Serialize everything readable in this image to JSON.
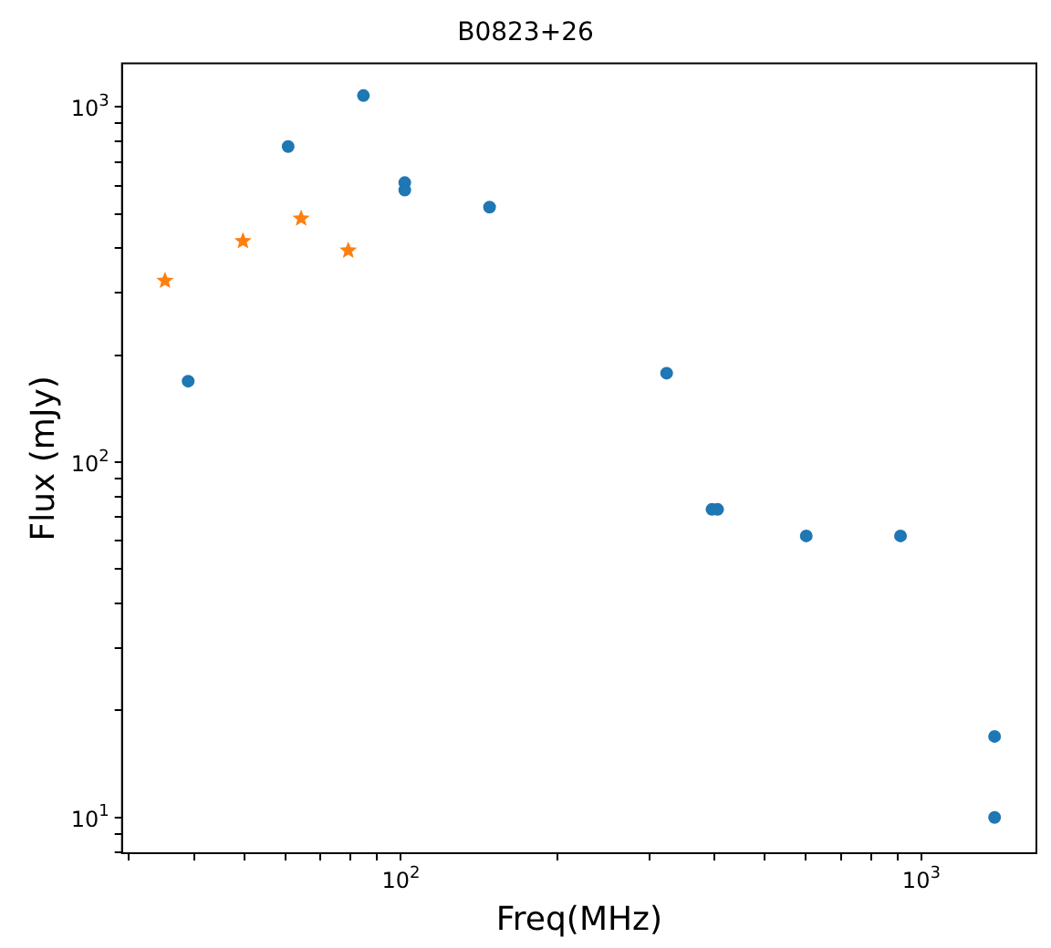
{
  "chart_data": {
    "type": "scatter",
    "title": "B0823+26",
    "xlabel": "Freq(MHz)",
    "ylabel": "Flux (mJy)",
    "log": "xy",
    "grid": false,
    "legend": false,
    "xlim": [
      29.1,
      1664
    ],
    "ylim": [
      7.93,
      1325
    ],
    "xticks": [
      {
        "value": 30,
        "label": null
      },
      {
        "value": 40,
        "label": null
      },
      {
        "value": 50,
        "label": null
      },
      {
        "value": 60,
        "label": null
      },
      {
        "value": 70,
        "label": null
      },
      {
        "value": 80,
        "label": null
      },
      {
        "value": 90,
        "label": null
      },
      {
        "value": 100,
        "label": "10$^{2}$"
      },
      {
        "value": 200,
        "label": null
      },
      {
        "value": 300,
        "label": null
      },
      {
        "value": 400,
        "label": null
      },
      {
        "value": 500,
        "label": null
      },
      {
        "value": 600,
        "label": null
      },
      {
        "value": 700,
        "label": null
      },
      {
        "value": 800,
        "label": null
      },
      {
        "value": 900,
        "label": null
      },
      {
        "value": 1000,
        "label": "10$^{3}$"
      }
    ],
    "yticks": [
      {
        "value": 8,
        "label": null
      },
      {
        "value": 9,
        "label": null
      },
      {
        "value": 10,
        "label": "10$^{1}$"
      },
      {
        "value": 20,
        "label": null
      },
      {
        "value": 30,
        "label": null
      },
      {
        "value": 40,
        "label": null
      },
      {
        "value": 50,
        "label": null
      },
      {
        "value": 60,
        "label": null
      },
      {
        "value": 70,
        "label": null
      },
      {
        "value": 80,
        "label": null
      },
      {
        "value": 90,
        "label": null
      },
      {
        "value": 100,
        "label": "10$^{2}$"
      },
      {
        "value": 200,
        "label": null
      },
      {
        "value": 300,
        "label": null
      },
      {
        "value": 400,
        "label": null
      },
      {
        "value": 500,
        "label": null
      },
      {
        "value": 600,
        "label": null
      },
      {
        "value": 700,
        "label": null
      },
      {
        "value": 800,
        "label": null
      },
      {
        "value": 900,
        "label": null
      },
      {
        "value": 1000,
        "label": "10$^{3}$"
      }
    ],
    "series": [
      {
        "color": "#1f77b4",
        "marker": "circle",
        "x": [
          39,
          60.7,
          84.7,
          101.7,
          101.7,
          148,
          324,
          396,
          406,
          601,
          912,
          1383,
          1383
        ],
        "values": [
          169,
          773,
          1076,
          612,
          583,
          522,
          178,
          73.6,
          73.6,
          62,
          62,
          16.9,
          10
        ]
      },
      {
        "color": "#ff7f0e",
        "marker": "star",
        "x": [
          35.2,
          49.7,
          64.3,
          79.2
        ],
        "values": [
          324,
          419,
          485,
          394
        ]
      }
    ]
  }
}
